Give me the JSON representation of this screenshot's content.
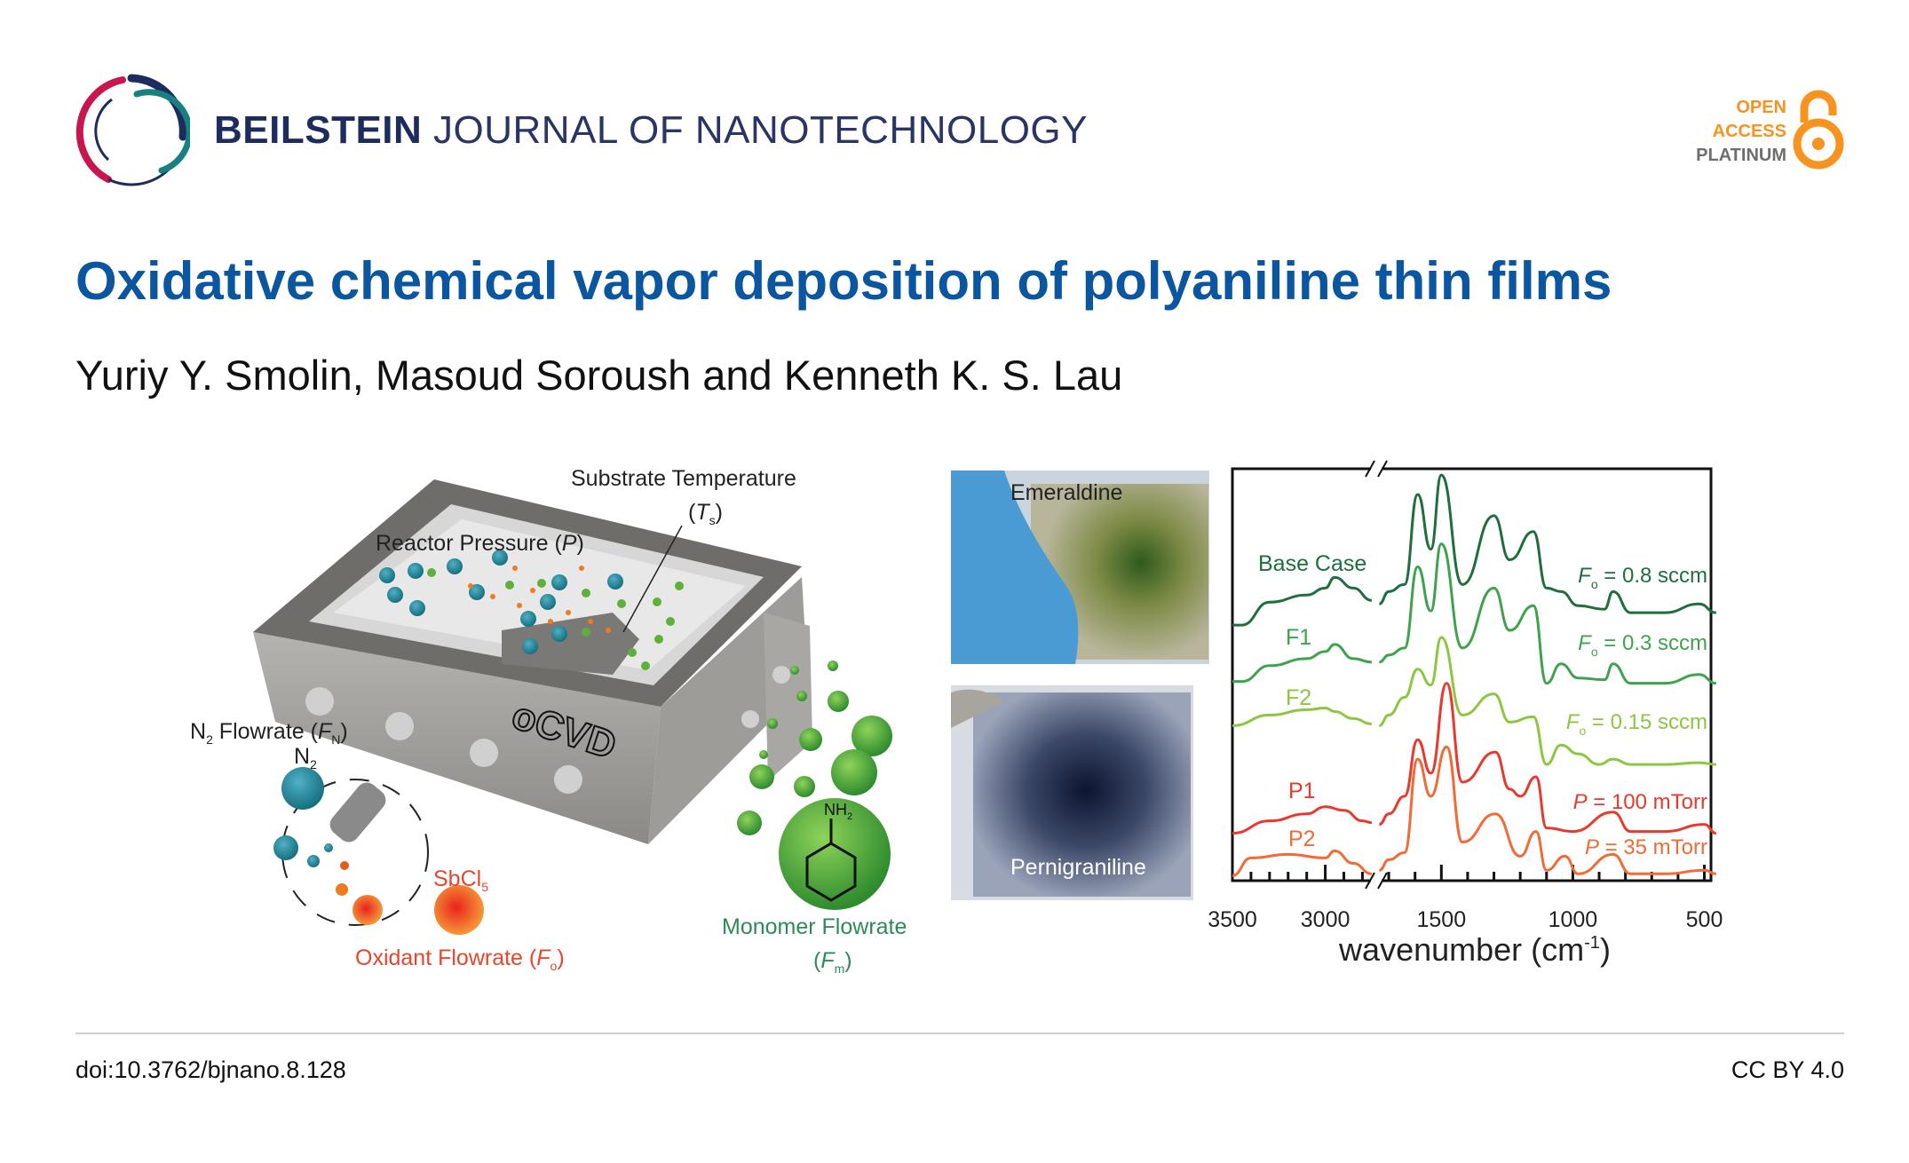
{
  "header": {
    "journal_bold": "BEILSTEIN",
    "journal_light": "JOURNAL OF NANOTECHNOLOGY",
    "open_access": [
      "OPEN",
      "ACCESS",
      "PLATINUM"
    ],
    "brand_colors": {
      "navy": "#1d2c5e",
      "crimson": "#c8174f",
      "teal": "#16817e",
      "oa_orange": "#f7931e"
    }
  },
  "article": {
    "title": "Oxidative chemical vapor deposition of polyaniline thin films",
    "authors": "Yuriy Y. Smolin, Masoud Soroush and Kenneth K. S. Lau",
    "title_color": "#0a56a0"
  },
  "illustration": {
    "substrate_temperature": "Substrate Temperature",
    "ts_label": {
      "var": "T",
      "sub": "s"
    },
    "reactor_pressure": "Reactor Pressure (",
    "reactor_pressure_var": "P",
    "n2_flowrate": {
      "n": "N",
      "n_sub": "2",
      "text": " Flowrate (",
      "var": "F",
      "sub": "N"
    },
    "n2": {
      "text": "N",
      "sub": "2"
    },
    "sbcl5": {
      "text": "SbCl",
      "sub": "5"
    },
    "oxidant_flowrate": {
      "text": "Oxidant Flowrate (",
      "var": "F",
      "sub": "o"
    },
    "monomer_flowrate": {
      "text": "Monomer Flowrate",
      "var": "F",
      "sub": "m"
    },
    "nh2": {
      "text": "NH",
      "sub": "2"
    },
    "reactor_name": "oCVD",
    "photo_top": "Emeraldine",
    "photo_bottom": "Pernigraniline"
  },
  "chart_data": {
    "type": "line",
    "xlabel": "wavenumber (cm",
    "xlabel_sup": "-1",
    "xlabel_close": ")",
    "xlim": [
      3500,
      455
    ],
    "axis_break": [
      2737,
      1736
    ],
    "x_ticks": [
      3500,
      3000,
      1500,
      1000,
      500
    ],
    "y_ticks": [],
    "grid": false,
    "series": [
      {
        "name": "Base Case",
        "condition": {
          "var": "F",
          "sub": "o",
          "value": "= 0.8 sccm"
        },
        "color": "#1f6e3d",
        "x": [
          3500,
          3450,
          3300,
          3100,
          3000,
          2950,
          2850,
          2750,
          1736,
          1700,
          1640,
          1590,
          1540,
          1500,
          1420,
          1300,
          1240,
          1150,
          1100,
          1045,
          980,
          880,
          847,
          780,
          650,
          520,
          455
        ],
        "y": [
          72.5,
          72.5,
          79,
          81,
          83,
          86,
          83,
          79.5,
          78.5,
          82,
          84,
          109.5,
          94,
          115,
          84,
          103.5,
          91,
          99,
          83,
          82,
          78,
          77,
          82,
          76,
          76,
          78.5,
          76
        ]
      },
      {
        "name": "F1",
        "condition": {
          "var": "F",
          "sub": "o",
          "value": "= 0.3 sccm"
        },
        "color": "#3fa34d",
        "x": [
          3500,
          3450,
          3300,
          3100,
          3000,
          2950,
          2850,
          2750,
          1736,
          1700,
          1640,
          1590,
          1540,
          1500,
          1420,
          1300,
          1240,
          1150,
          1100,
          1045,
          980,
          880,
          847,
          780,
          650,
          520,
          455
        ],
        "y": [
          56.5,
          56.5,
          61,
          63,
          65,
          67,
          63,
          62,
          62,
          64,
          66,
          89,
          76.5,
          95.5,
          66,
          83,
          71,
          78,
          56,
          61.5,
          57.5,
          57,
          61.5,
          56,
          56,
          58.5,
          56
        ]
      },
      {
        "name": "F2",
        "condition": {
          "var": "F",
          "sub": "o",
          "value": "= 0.15 sccm"
        },
        "color": "#8dc641",
        "x": [
          3500,
          3300,
          3100,
          3000,
          2950,
          2850,
          2750,
          1736,
          1700,
          1640,
          1590,
          1540,
          1500,
          1420,
          1300,
          1240,
          1150,
          1100,
          1045,
          980,
          900,
          847,
          780,
          650,
          520,
          455
        ],
        "y": [
          44,
          47,
          48.5,
          49,
          48,
          46,
          44.5,
          44,
          47,
          52,
          60,
          55.5,
          69,
          47,
          53,
          45,
          46.5,
          33,
          38.5,
          36,
          33,
          34.5,
          33,
          33,
          33.5,
          33
        ]
      },
      {
        "name": "P1",
        "condition": {
          "var": "P",
          "sub": "",
          "value": "= 100 mTorr"
        },
        "color": "#e8392f",
        "x": [
          3500,
          3300,
          3100,
          3000,
          2900,
          2800,
          2750,
          1736,
          1700,
          1640,
          1590,
          1540,
          1480,
          1420,
          1295,
          1240,
          1200,
          1140,
          1100,
          1000,
          847,
          780,
          650,
          500,
          455
        ],
        "y": [
          13.5,
          17,
          19,
          21,
          20,
          17,
          16.5,
          16,
          19,
          24,
          40,
          30.5,
          56,
          28,
          36.5,
          26,
          24,
          29.5,
          15,
          14,
          19.5,
          14,
          14,
          16,
          13.5
        ]
      },
      {
        "name": "P2",
        "condition": {
          "var": "P",
          "sub": "",
          "value": "= 35 mTorr"
        },
        "color": "#f26a36",
        "x": [
          3500,
          3400,
          3200,
          3000,
          2950,
          2850,
          2750,
          1736,
          1700,
          1640,
          1590,
          1540,
          1480,
          1420,
          1295,
          1200,
          1140,
          1100,
          1030,
          980,
          847,
          780,
          650,
          500,
          455
        ],
        "y": [
          1.5,
          6.5,
          7.5,
          6.5,
          8.5,
          5,
          2,
          3,
          6,
          8,
          34.5,
          24,
          38,
          11,
          19,
          7,
          14,
          3,
          7,
          2,
          7.5,
          2,
          2,
          3,
          2
        ]
      }
    ]
  },
  "footer": {
    "doi": "doi:10.3762/bjnano.8.128",
    "license": "CC BY 4.0"
  }
}
